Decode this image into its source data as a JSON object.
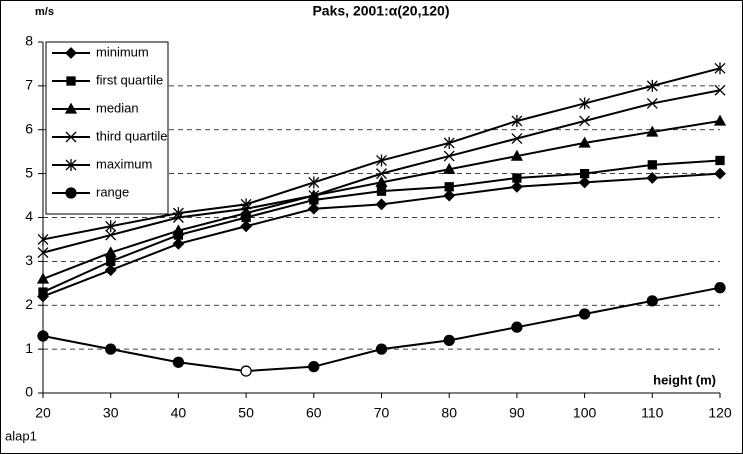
{
  "chart_data": {
    "type": "line",
    "title": "Paks, 2001:α(20,120)",
    "y_label": "m/s",
    "x_label": "height (m)",
    "footnote": "alap1",
    "x": [
      20,
      30,
      40,
      50,
      60,
      70,
      80,
      90,
      100,
      110,
      120
    ],
    "xlim": [
      20,
      120
    ],
    "xticks": [
      20,
      30,
      40,
      50,
      60,
      70,
      80,
      90,
      100,
      110,
      120
    ],
    "ylim": [
      0,
      8
    ],
    "yticks": [
      0,
      1,
      2,
      3,
      4,
      5,
      6,
      7,
      8
    ],
    "grid": true,
    "legend": "upper left",
    "series": [
      {
        "name": "minimum",
        "color": "#000000",
        "marker": "diamond",
        "values": [
          2.2,
          2.8,
          3.4,
          3.8,
          4.2,
          4.3,
          4.5,
          4.7,
          4.8,
          4.9,
          5.0
        ]
      },
      {
        "name": "first quartile",
        "color": "#000000",
        "marker": "square",
        "values": [
          2.3,
          3.0,
          3.6,
          4.0,
          4.4,
          4.6,
          4.7,
          4.9,
          5.0,
          5.2,
          5.3
        ]
      },
      {
        "name": "median",
        "color": "#000000",
        "marker": "triangle",
        "values": [
          2.6,
          3.2,
          3.7,
          4.1,
          4.5,
          4.8,
          5.1,
          5.4,
          5.7,
          5.95,
          6.2
        ]
      },
      {
        "name": "third quartile",
        "color": "#000000",
        "marker": "x",
        "values": [
          3.2,
          3.6,
          4.0,
          4.2,
          4.5,
          5.0,
          5.4,
          5.8,
          6.2,
          6.6,
          6.9
        ]
      },
      {
        "name": "maximum",
        "color": "#000000",
        "marker": "star",
        "values": [
          3.5,
          3.8,
          4.1,
          4.3,
          4.8,
          5.3,
          5.7,
          6.2,
          6.6,
          7.0,
          7.4
        ]
      },
      {
        "name": "range",
        "color": "#000000",
        "marker": "circle",
        "hollow_points": [
          3
        ],
        "values": [
          1.3,
          1.0,
          0.7,
          0.5,
          0.6,
          1.0,
          1.2,
          1.5,
          1.8,
          2.1,
          2.4
        ]
      }
    ]
  }
}
